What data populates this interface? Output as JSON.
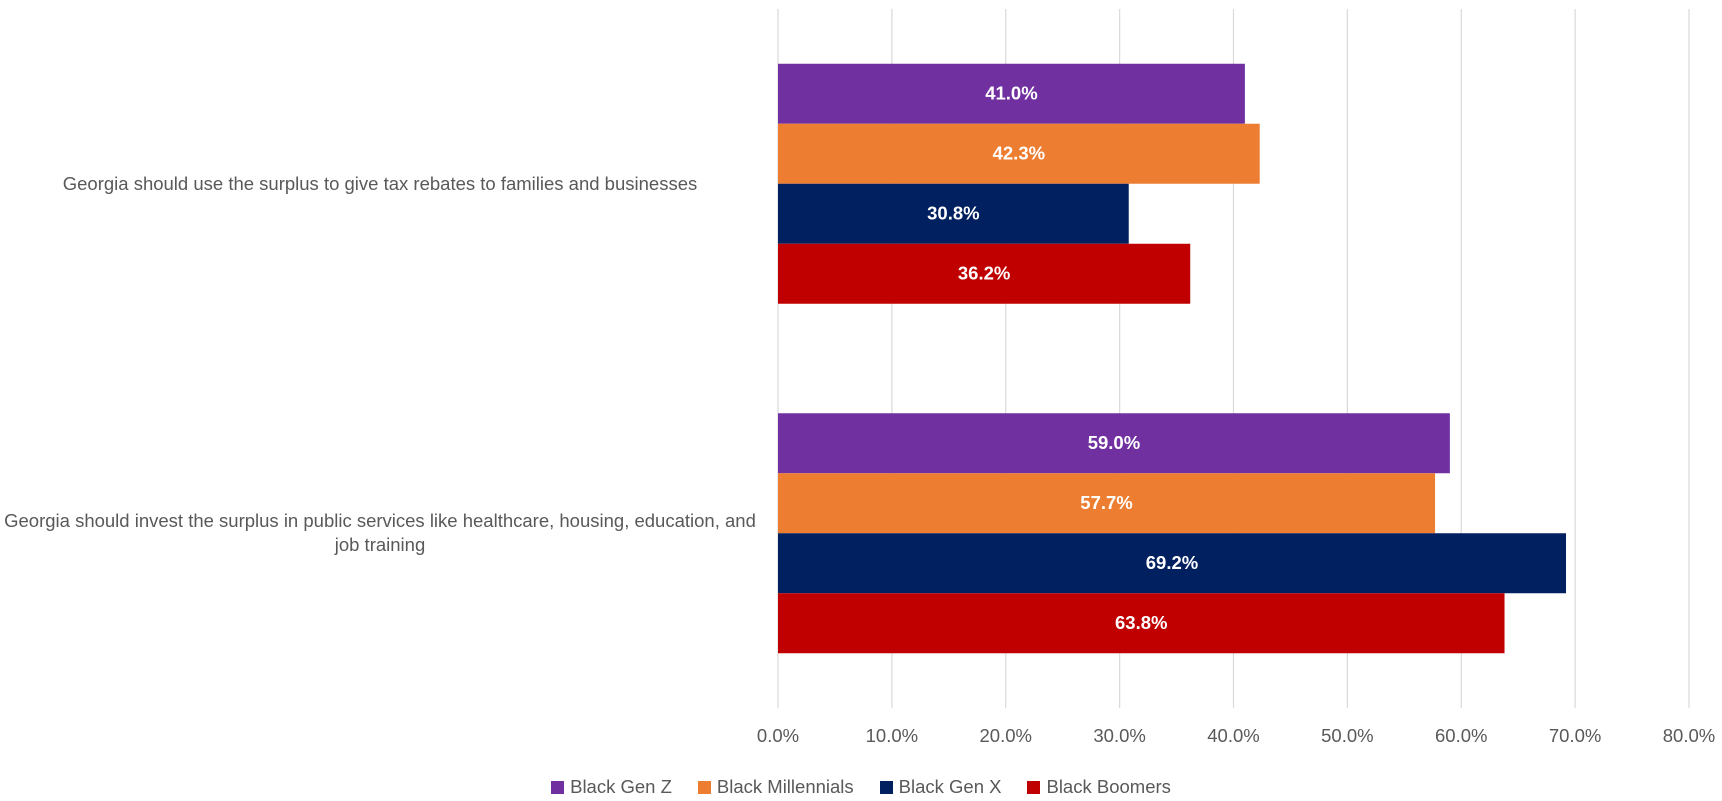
{
  "chart_data": {
    "type": "bar",
    "orientation": "horizontal",
    "categories": [
      "Georgia should use the surplus to give tax rebates to families and businesses",
      "Georgia should invest the surplus in public services like healthcare, housing, education, and job training"
    ],
    "series": [
      {
        "name": "Black Gen Z",
        "color": "#7030a0",
        "values": [
          41.0,
          59.0
        ],
        "value_labels": [
          "41.0%",
          "59.0%"
        ]
      },
      {
        "name": "Black Millennials",
        "color": "#ed7d31",
        "values": [
          42.3,
          57.7
        ],
        "value_labels": [
          "42.3%",
          "57.7%"
        ]
      },
      {
        "name": "Black Gen X",
        "color": "#002060",
        "values": [
          30.8,
          69.2
        ],
        "value_labels": [
          "30.8%",
          "69.2%"
        ]
      },
      {
        "name": "Black Boomers",
        "color": "#c00000",
        "values": [
          36.2,
          63.8
        ],
        "value_labels": [
          "36.2%",
          "63.8%"
        ]
      }
    ],
    "xlim": [
      0,
      80
    ],
    "xticks": [
      {
        "value": 0,
        "label": "0.0%"
      },
      {
        "value": 10,
        "label": "10.0%"
      },
      {
        "value": 20,
        "label": "20.0%"
      },
      {
        "value": 30,
        "label": "30.0%"
      },
      {
        "value": 40,
        "label": "40.0%"
      },
      {
        "value": 50,
        "label": "50.0%"
      },
      {
        "value": 60,
        "label": "60.0%"
      },
      {
        "value": 70,
        "label": "70.0%"
      },
      {
        "value": 80,
        "label": "80.0%"
      }
    ],
    "grid": true,
    "legend": "bottom"
  }
}
